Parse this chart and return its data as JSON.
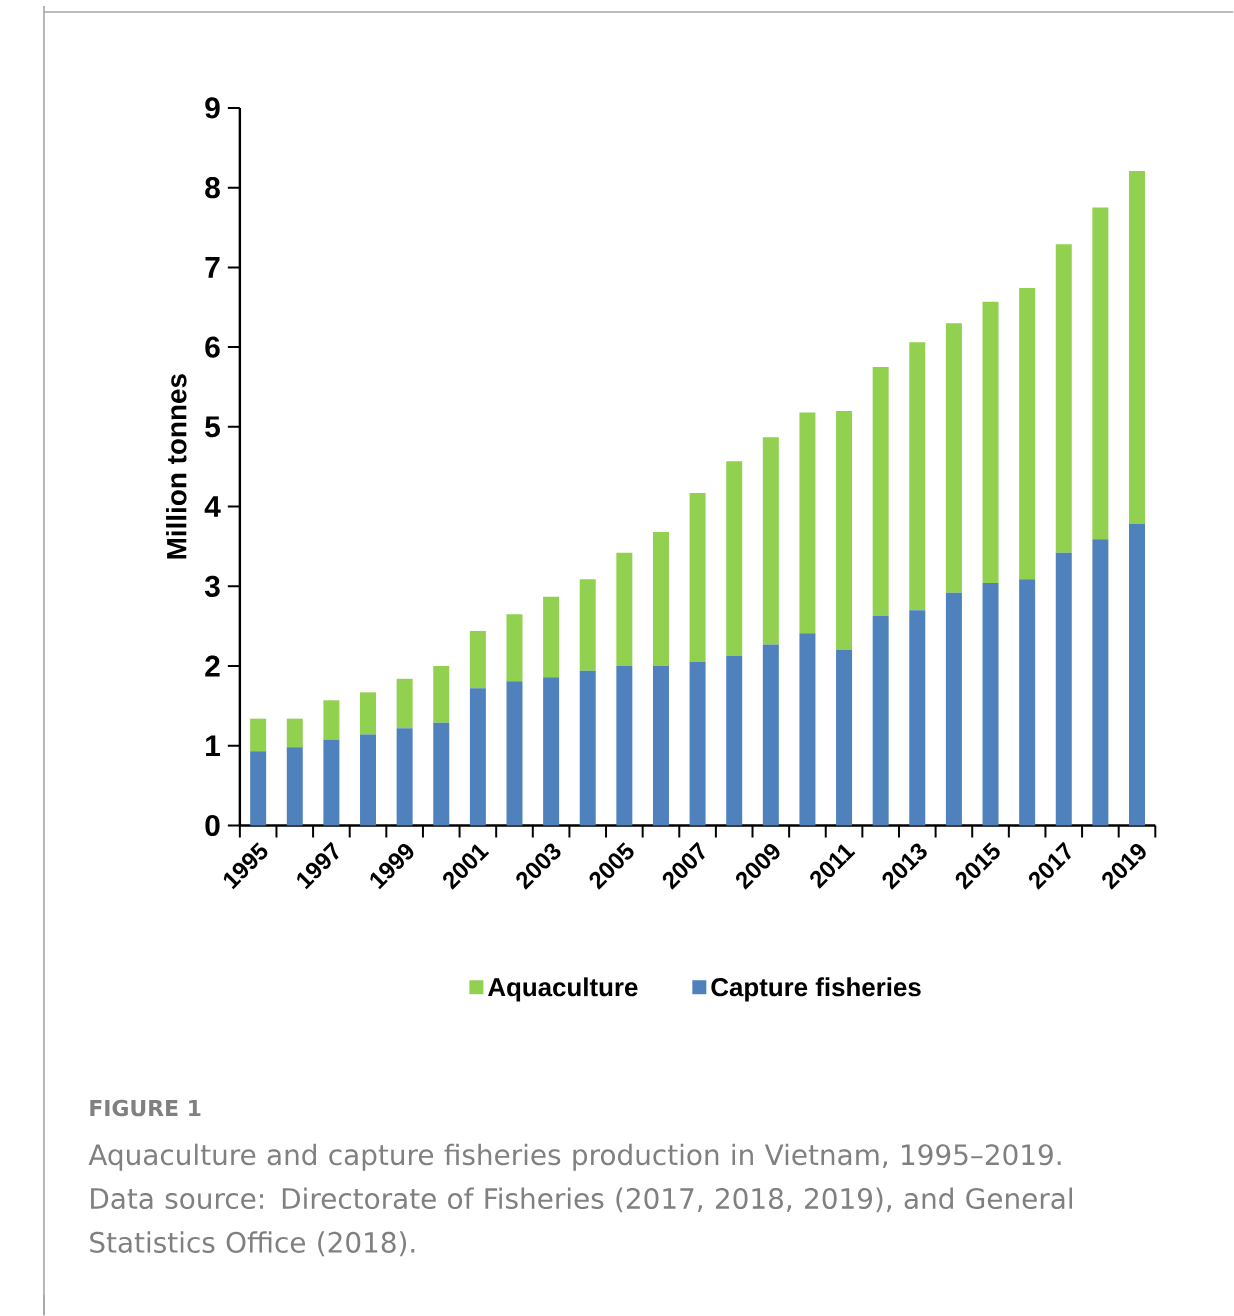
{
  "chart_data": {
    "type": "bar",
    "stacked": true,
    "ylabel": "Million tonnes",
    "categories": [
      "1995",
      null,
      "1997",
      null,
      "1999",
      null,
      "2001",
      null,
      "2003",
      null,
      "2005",
      null,
      "2007",
      null,
      "2009",
      null,
      "2011",
      null,
      "2013",
      null,
      "2015",
      null,
      "2017",
      null,
      "2019"
    ],
    "series": [
      {
        "name": "Capture fisheries",
        "color": "#4f81bd",
        "values": [
          0.93,
          0.98,
          1.08,
          1.14,
          1.22,
          1.29,
          1.72,
          1.81,
          1.86,
          1.94,
          2.0,
          2.0,
          2.05,
          2.13,
          2.27,
          2.41,
          2.2,
          2.63,
          2.7,
          2.92,
          3.04,
          3.09,
          3.42,
          3.59,
          3.78
        ]
      },
      {
        "name": "Aquaculture",
        "color": "#92d050",
        "values": [
          0.41,
          0.36,
          0.49,
          0.53,
          0.62,
          0.71,
          0.72,
          0.84,
          1.01,
          1.15,
          1.42,
          1.68,
          2.12,
          2.44,
          2.6,
          2.77,
          3.0,
          3.12,
          3.36,
          3.38,
          3.53,
          3.65,
          3.87,
          4.16,
          4.43
        ]
      }
    ],
    "ylim": [
      0,
      9
    ],
    "yticks": [
      0,
      1,
      2,
      3,
      4,
      5,
      6,
      7,
      8,
      9
    ],
    "grid": false,
    "legend": "bottom",
    "annotations": [
      "FIGURE 1",
      "Aquaculture and capture fisheries production in Vietnam, 1995–2019. Data source: Directorate of Fisheries (2017, 2018, 2019), and General Statistics Office (2018)."
    ]
  }
}
